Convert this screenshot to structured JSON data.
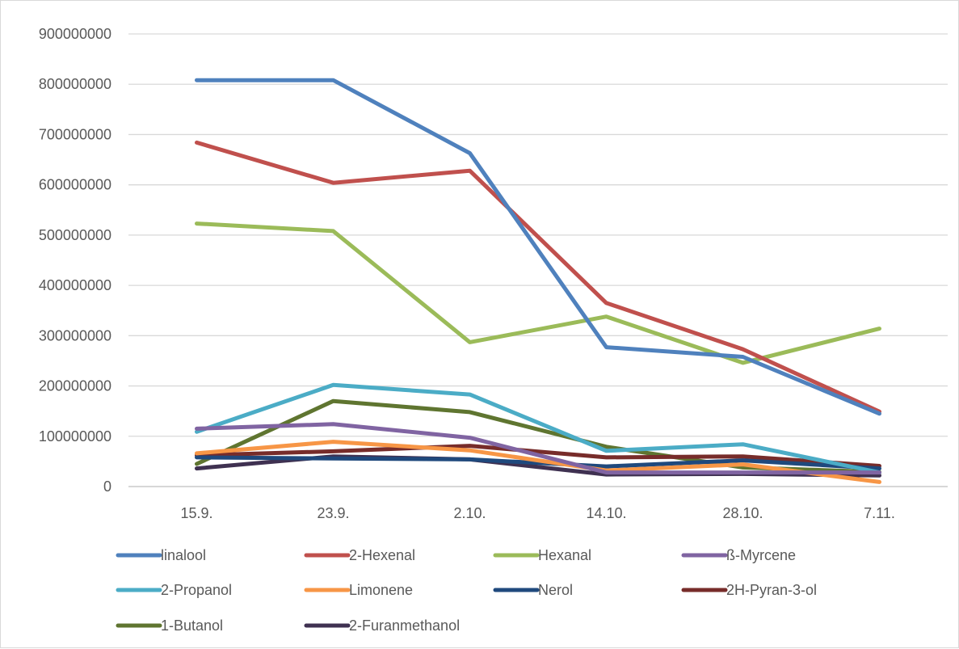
{
  "chart_data": {
    "type": "line",
    "categories": [
      "15.9.",
      "23.9.",
      "2.10.",
      "14.10.",
      "28.10.",
      "7.11."
    ],
    "ylim": [
      0,
      900000000
    ],
    "yticks": [
      0,
      100000000,
      200000000,
      300000000,
      400000000,
      500000000,
      600000000,
      700000000,
      800000000,
      900000000
    ],
    "ytick_labels": [
      "0",
      "100000000",
      "200000000",
      "300000000",
      "400000000",
      "500000000",
      "600000000",
      "700000000",
      "800000000",
      "900000000"
    ],
    "grid": true,
    "legend_position": "bottom",
    "series": [
      {
        "name": "linalool",
        "color": "#4f81bd",
        "values": [
          808000000,
          808000000,
          663000000,
          277000000,
          258000000,
          145000000
        ]
      },
      {
        "name": "2-Hexenal",
        "color": "#c0504d",
        "values": [
          684000000,
          604000000,
          628000000,
          365000000,
          273000000,
          149000000
        ]
      },
      {
        "name": "Hexanal",
        "color": "#9bbb59",
        "values": [
          523000000,
          508000000,
          287000000,
          338000000,
          246000000,
          314000000
        ]
      },
      {
        "name": "ß-Myrcene",
        "color": "#8064a2",
        "values": [
          115000000,
          124000000,
          97000000,
          28000000,
          28000000,
          28000000
        ]
      },
      {
        "name": "2-Propanol",
        "color": "#4bacc6",
        "values": [
          109000000,
          202000000,
          183000000,
          71000000,
          84000000,
          28000000
        ]
      },
      {
        "name": "Limonene",
        "color": "#f79646",
        "values": [
          66000000,
          89000000,
          72000000,
          32000000,
          44000000,
          9000000
        ]
      },
      {
        "name": "Nerol",
        "color": "#1f497d",
        "values": [
          58000000,
          56000000,
          54000000,
          40000000,
          52000000,
          36000000
        ]
      },
      {
        "name": "2H-Pyran-3-ol",
        "color": "#772c2a",
        "values": [
          62000000,
          70000000,
          81000000,
          58000000,
          60000000,
          41000000
        ]
      },
      {
        "name": "1-Butanol",
        "color": "#5f7530",
        "values": [
          45000000,
          170000000,
          148000000,
          79000000,
          38000000,
          29000000
        ]
      },
      {
        "name": "2-Furanmethanol",
        "color": "#3f3151",
        "values": [
          36000000,
          60000000,
          54000000,
          24000000,
          25000000,
          22000000
        ]
      }
    ]
  }
}
